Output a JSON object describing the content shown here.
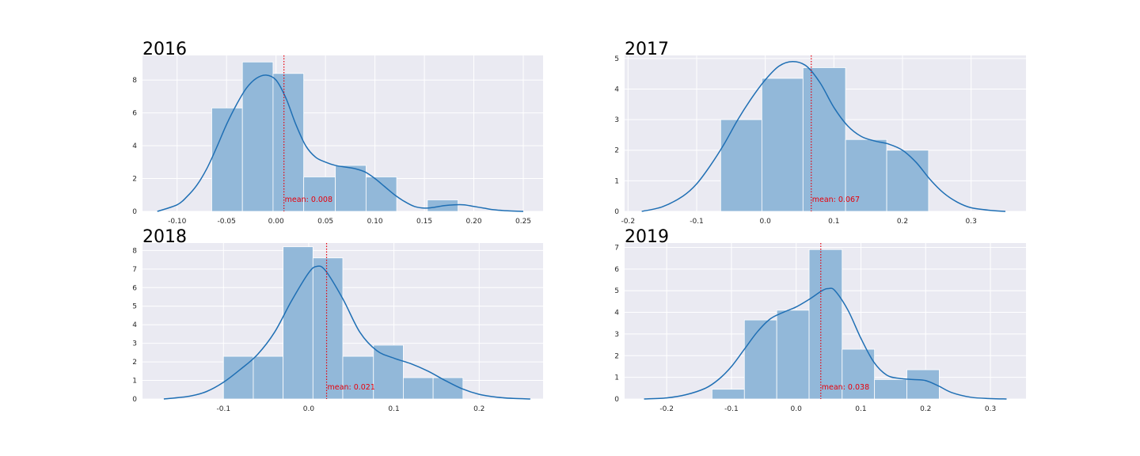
{
  "colors": {
    "background": "#eaeaf2",
    "grid": "#ffffff",
    "bar_fill": "#92b8d9",
    "kde_line": "#1f6fb4",
    "mean_line": "#e8000b"
  },
  "chart_data": [
    {
      "type": "bar",
      "title": "2016",
      "grid": true,
      "xlim": [
        -0.135,
        0.27
      ],
      "ylim": [
        0,
        9.5
      ],
      "xticks": [
        -0.1,
        -0.05,
        0.0,
        0.05,
        0.1,
        0.15,
        0.2,
        0.25
      ],
      "xtick_labels": [
        "-0.10",
        "-0.05",
        "0.00",
        "0.05",
        "0.10",
        "0.15",
        "0.20",
        "0.25"
      ],
      "yticks": [
        0,
        2,
        4,
        6,
        8
      ],
      "ytick_labels": [
        "0",
        "2",
        "4",
        "6",
        "8"
      ],
      "bins": [
        {
          "x0": -0.065,
          "x1": -0.034,
          "height": 6.3
        },
        {
          "x0": -0.034,
          "x1": -0.003,
          "height": 9.1
        },
        {
          "x0": -0.003,
          "x1": 0.028,
          "height": 8.4
        },
        {
          "x0": 0.028,
          "x1": 0.06,
          "height": 2.1
        },
        {
          "x0": 0.06,
          "x1": 0.091,
          "height": 2.8
        },
        {
          "x0": 0.091,
          "x1": 0.122,
          "height": 2.1
        },
        {
          "x0": 0.153,
          "x1": 0.184,
          "height": 0.7
        }
      ],
      "kde": {
        "x": [
          -0.12,
          -0.1,
          -0.09,
          -0.08,
          -0.07,
          -0.06,
          -0.05,
          -0.04,
          -0.03,
          -0.02,
          -0.01,
          0.0,
          0.01,
          0.02,
          0.03,
          0.04,
          0.05,
          0.06,
          0.07,
          0.08,
          0.09,
          0.1,
          0.11,
          0.12,
          0.13,
          0.14,
          0.15,
          0.16,
          0.17,
          0.18,
          0.19,
          0.2,
          0.21,
          0.22,
          0.23,
          0.25
        ],
        "y": [
          0.0,
          0.4,
          0.9,
          1.6,
          2.6,
          3.9,
          5.3,
          6.5,
          7.5,
          8.1,
          8.3,
          8.0,
          6.9,
          5.3,
          4.0,
          3.3,
          3.0,
          2.8,
          2.7,
          2.6,
          2.4,
          2.0,
          1.5,
          1.0,
          0.6,
          0.3,
          0.2,
          0.25,
          0.35,
          0.4,
          0.4,
          0.3,
          0.2,
          0.1,
          0.05,
          0.0
        ]
      },
      "mean": 0.008,
      "mean_label": "mean: 0.008"
    },
    {
      "type": "bar",
      "title": "2017",
      "grid": true,
      "xlim": [
        -0.205,
        0.38
      ],
      "ylim": [
        0,
        5.1
      ],
      "xticks": [
        -0.2,
        -0.1,
        0.0,
        0.1,
        0.2,
        0.3
      ],
      "xtick_labels": [
        "-0.2",
        "-0.1",
        "0.0",
        "0.1",
        "0.2",
        "0.3"
      ],
      "yticks": [
        0,
        1,
        2,
        3,
        4,
        5
      ],
      "ytick_labels": [
        "0",
        "1",
        "2",
        "3",
        "4",
        "5"
      ],
      "bins": [
        {
          "x0": -0.065,
          "x1": -0.005,
          "height": 3.0
        },
        {
          "x0": -0.005,
          "x1": 0.055,
          "height": 4.35
        },
        {
          "x0": 0.055,
          "x1": 0.117,
          "height": 4.7
        },
        {
          "x0": 0.117,
          "x1": 0.177,
          "height": 2.35
        },
        {
          "x0": 0.177,
          "x1": 0.238,
          "height": 2.0
        }
      ],
      "kde": {
        "x": [
          -0.18,
          -0.15,
          -0.12,
          -0.1,
          -0.08,
          -0.06,
          -0.04,
          -0.02,
          0.0,
          0.02,
          0.04,
          0.06,
          0.08,
          0.1,
          0.12,
          0.14,
          0.16,
          0.18,
          0.2,
          0.22,
          0.24,
          0.26,
          0.28,
          0.3,
          0.33,
          0.35
        ],
        "y": [
          0.0,
          0.15,
          0.5,
          0.9,
          1.5,
          2.2,
          3.0,
          3.7,
          4.3,
          4.75,
          4.9,
          4.75,
          4.2,
          3.4,
          2.8,
          2.45,
          2.3,
          2.2,
          2.0,
          1.6,
          1.05,
          0.6,
          0.3,
          0.12,
          0.03,
          0.0
        ]
      },
      "mean": 0.067,
      "mean_label": "mean: 0.067"
    },
    {
      "type": "bar",
      "title": "2018",
      "grid": true,
      "xlim": [
        -0.195,
        0.275
      ],
      "ylim": [
        0,
        8.4
      ],
      "xticks": [
        -0.1,
        0.0,
        0.1,
        0.2
      ],
      "xtick_labels": [
        "-0.1",
        "0.0",
        "0.1",
        "0.2"
      ],
      "yticks": [
        0,
        1,
        2,
        3,
        4,
        5,
        6,
        7,
        8
      ],
      "ytick_labels": [
        "0",
        "1",
        "2",
        "3",
        "4",
        "5",
        "6",
        "7",
        "8"
      ],
      "bins": [
        {
          "x0": -0.1,
          "x1": -0.065,
          "height": 2.3
        },
        {
          "x0": -0.065,
          "x1": -0.03,
          "height": 2.3
        },
        {
          "x0": -0.03,
          "x1": 0.005,
          "height": 8.2
        },
        {
          "x0": 0.005,
          "x1": 0.04,
          "height": 7.6
        },
        {
          "x0": 0.04,
          "x1": 0.076,
          "height": 2.3
        },
        {
          "x0": 0.076,
          "x1": 0.111,
          "height": 2.9
        },
        {
          "x0": 0.111,
          "x1": 0.146,
          "height": 1.15
        },
        {
          "x0": 0.146,
          "x1": 0.181,
          "height": 1.15
        }
      ],
      "kde": {
        "x": [
          -0.17,
          -0.14,
          -0.12,
          -0.1,
          -0.08,
          -0.06,
          -0.04,
          -0.02,
          0.0,
          0.01,
          0.02,
          0.04,
          0.06,
          0.08,
          0.1,
          0.12,
          0.14,
          0.16,
          0.18,
          0.2,
          0.22,
          0.24,
          0.26
        ],
        "y": [
          0.0,
          0.15,
          0.4,
          0.9,
          1.6,
          2.4,
          3.6,
          5.3,
          6.8,
          7.15,
          6.9,
          5.4,
          3.6,
          2.6,
          2.2,
          1.9,
          1.5,
          1.0,
          0.55,
          0.25,
          0.1,
          0.03,
          0.0
        ]
      },
      "mean": 0.021,
      "mean_label": "mean: 0.021"
    },
    {
      "type": "bar",
      "title": "2019",
      "grid": true,
      "xlim": [
        -0.265,
        0.355
      ],
      "ylim": [
        0,
        7.2
      ],
      "xticks": [
        -0.2,
        -0.1,
        0.0,
        0.1,
        0.2,
        0.3
      ],
      "xtick_labels": [
        "-0.2",
        "-0.1",
        "0.0",
        "0.1",
        "0.2",
        "0.3"
      ],
      "yticks": [
        0,
        1,
        2,
        3,
        4,
        5,
        6,
        7
      ],
      "ytick_labels": [
        "0",
        "1",
        "2",
        "3",
        "4",
        "5",
        "6",
        "7"
      ],
      "bins": [
        {
          "x0": -0.13,
          "x1": -0.08,
          "height": 0.45
        },
        {
          "x0": -0.08,
          "x1": -0.03,
          "height": 3.65
        },
        {
          "x0": -0.03,
          "x1": 0.02,
          "height": 4.1
        },
        {
          "x0": 0.02,
          "x1": 0.071,
          "height": 6.9
        },
        {
          "x0": 0.071,
          "x1": 0.121,
          "height": 2.3
        },
        {
          "x0": 0.121,
          "x1": 0.171,
          "height": 0.9
        },
        {
          "x0": 0.171,
          "x1": 0.221,
          "height": 1.35
        }
      ],
      "kde": {
        "x": [
          -0.235,
          -0.2,
          -0.17,
          -0.14,
          -0.12,
          -0.1,
          -0.08,
          -0.06,
          -0.04,
          -0.02,
          0.0,
          0.02,
          0.04,
          0.05,
          0.06,
          0.08,
          0.1,
          0.12,
          0.14,
          0.16,
          0.18,
          0.2,
          0.22,
          0.24,
          0.27,
          0.3,
          0.325
        ],
        "y": [
          0.0,
          0.05,
          0.2,
          0.5,
          0.9,
          1.5,
          2.3,
          3.1,
          3.7,
          4.0,
          4.25,
          4.6,
          5.0,
          5.1,
          5.0,
          4.1,
          2.8,
          1.7,
          1.1,
          0.95,
          0.9,
          0.85,
          0.6,
          0.3,
          0.08,
          0.02,
          0.0
        ]
      },
      "mean": 0.038,
      "mean_label": "mean: 0.038"
    }
  ]
}
